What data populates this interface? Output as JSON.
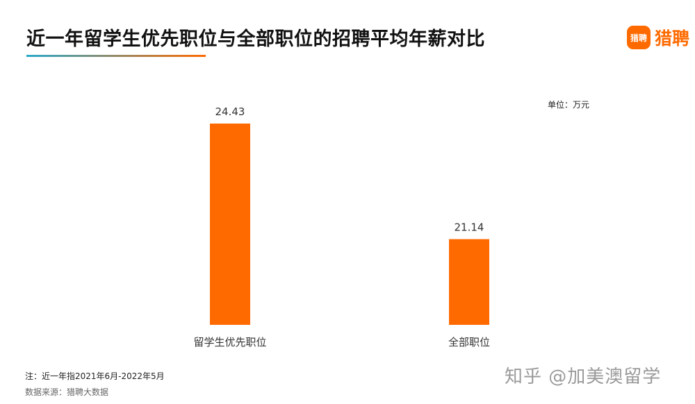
{
  "title": "近一年留学生优先职位与全部职位的招聘平均年薪对比",
  "logo": {
    "icon_text": "猎聘",
    "text": "猎聘",
    "color": "#ff6a00"
  },
  "unit_label": "单位：万元",
  "note": "注：近一年指2021年6月-2022年5月",
  "source": "数据来源：猎聘大数据",
  "watermark": "知乎 @加美澳留学",
  "colors": {
    "bar": "#ff6a00",
    "accent_gradient_start": "#2aa9c9",
    "accent_gradient_end": "#ff6a00"
  },
  "chart_data": {
    "type": "bar",
    "categories": [
      "留学生优先职位",
      "全部职位"
    ],
    "values": [
      24.43,
      21.14
    ],
    "value_labels": [
      "24.43",
      "21.14"
    ],
    "title": "近一年留学生优先职位与全部职位的招聘平均年薪对比",
    "xlabel": "",
    "ylabel": "",
    "unit": "万元",
    "ylim": [
      18.7,
      24.43
    ],
    "grid": false,
    "legend": "none"
  }
}
